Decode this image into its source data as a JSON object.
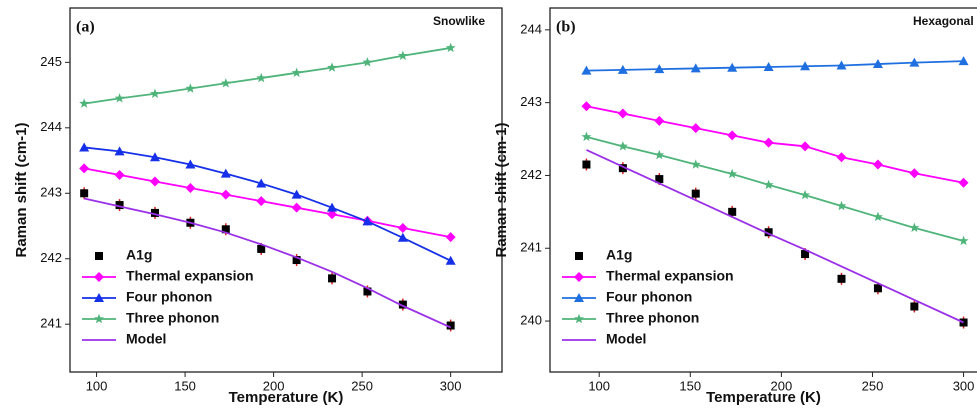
{
  "chart_data": [
    {
      "type": "line",
      "panel_label": "(a)",
      "annotation": "Snowlike",
      "x_label": "Temperature (K)",
      "y_label": "Raman shift (cm-1)",
      "xlim": [
        85,
        329
      ],
      "xticks": [
        100,
        150,
        200,
        250,
        300
      ],
      "ylim": [
        240.27,
        245.83
      ],
      "yticks": [
        241,
        242,
        243,
        244,
        245
      ],
      "legend": "lower left",
      "x": [
        93,
        113,
        133,
        153,
        173,
        193,
        213,
        233,
        253,
        273,
        300
      ],
      "series": [
        {
          "name": "A1g",
          "color": "#000000",
          "marker": "square",
          "line": false,
          "values": [
            243.0,
            242.82,
            242.7,
            242.55,
            242.45,
            242.15,
            241.98,
            241.7,
            241.5,
            241.3,
            240.98
          ]
        },
        {
          "name": "Thermal expansion",
          "color": "#ff00ff",
          "marker": "diamond",
          "line": true,
          "values": [
            243.38,
            243.28,
            243.18,
            243.08,
            242.98,
            242.88,
            242.78,
            242.68,
            242.58,
            242.47,
            242.33
          ]
        },
        {
          "name": "Four phonon",
          "color": "#1530e8",
          "marker": "triangle",
          "line": true,
          "values": [
            243.7,
            243.64,
            243.55,
            243.44,
            243.3,
            243.15,
            242.98,
            242.78,
            242.57,
            242.32,
            241.97
          ]
        },
        {
          "name": "Three phonon",
          "color": "#4fb47a",
          "marker": "star",
          "line": true,
          "values": [
            244.37,
            244.45,
            244.52,
            244.6,
            244.68,
            244.76,
            244.84,
            244.92,
            245.0,
            245.1,
            245.22
          ]
        },
        {
          "name": "Model",
          "color": "#9b30e8",
          "marker": "none",
          "line": true,
          "values": [
            242.92,
            242.8,
            242.68,
            242.55,
            242.4,
            242.22,
            242.02,
            241.8,
            241.55,
            241.28,
            240.95
          ]
        }
      ]
    },
    {
      "type": "line",
      "panel_label": "(b)",
      "annotation": "Hexagonal",
      "x_label": "Temperature (K)",
      "y_label": "Raman shift (cm-1)",
      "xlim": [
        73,
        320
      ],
      "xticks": [
        100,
        150,
        200,
        250,
        300
      ],
      "ylim": [
        239.3,
        244.3
      ],
      "yticks": [
        240,
        241,
        242,
        243,
        244
      ],
      "legend": "lower left",
      "x": [
        93,
        113,
        133,
        153,
        173,
        193,
        213,
        233,
        253,
        273,
        300
      ],
      "series": [
        {
          "name": "A1g",
          "color": "#000000",
          "marker": "square",
          "line": false,
          "values": [
            242.15,
            242.1,
            241.95,
            241.75,
            241.5,
            241.22,
            240.92,
            240.58,
            240.45,
            240.2,
            239.98
          ]
        },
        {
          "name": "Thermal expansion",
          "color": "#ff00ff",
          "marker": "diamond",
          "line": true,
          "values": [
            242.95,
            242.85,
            242.75,
            242.65,
            242.55,
            242.45,
            242.4,
            242.25,
            242.15,
            242.03,
            241.9
          ]
        },
        {
          "name": "Four phonon",
          "color": "#1f6fe0",
          "marker": "triangle",
          "line": true,
          "values": [
            243.44,
            243.45,
            243.46,
            243.47,
            243.48,
            243.49,
            243.5,
            243.51,
            243.53,
            243.55,
            243.57
          ]
        },
        {
          "name": "Three phonon",
          "color": "#4fb47a",
          "marker": "star",
          "line": true,
          "values": [
            242.53,
            242.4,
            242.28,
            242.15,
            242.02,
            241.87,
            241.73,
            241.58,
            241.43,
            241.28,
            241.1
          ]
        },
        {
          "name": "Model",
          "color": "#9b30e8",
          "marker": "none",
          "line": true,
          "values": [
            242.35,
            242.12,
            241.89,
            241.66,
            241.43,
            241.2,
            240.98,
            240.75,
            240.52,
            240.29,
            239.98
          ]
        }
      ]
    }
  ]
}
